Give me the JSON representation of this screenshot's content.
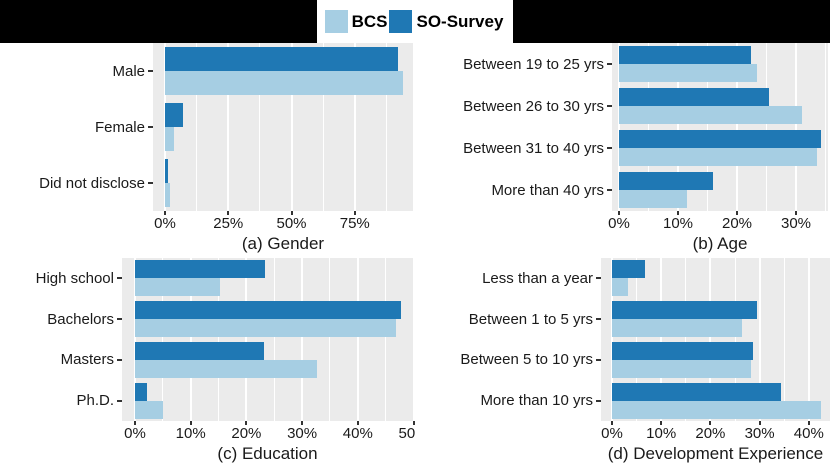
{
  "legend": {
    "items": [
      {
        "label": "BCS",
        "color": "#a6cee3"
      },
      {
        "label": "SO-Survey",
        "color": "#1f78b4"
      }
    ]
  },
  "colors": {
    "header_bg": "#000000",
    "panel_bg": "#ebebeb",
    "gridline": "#ffffff",
    "text": "#1a1a1a"
  },
  "chart_data": [
    {
      "type": "bar",
      "orientation": "horizontal",
      "title": "(a) Gender",
      "categories": [
        "Male",
        "Female",
        "Did not disclose"
      ],
      "series": [
        {
          "name": "BCS",
          "color": "#a6cee3",
          "values": [
            93.9,
            3.5,
            2.0
          ]
        },
        {
          "name": "SO-Survey",
          "color": "#1f78b4",
          "values": [
            92.1,
            7.0,
            1.3
          ]
        }
      ],
      "x_ticks": [
        {
          "label": "0%",
          "value": 0
        },
        {
          "label": "25%",
          "value": 25
        },
        {
          "label": "50%",
          "value": 50
        },
        {
          "label": "75%",
          "value": 75
        }
      ],
      "xlim": [
        0,
        97
      ],
      "minor_step": 12.5,
      "grid": true,
      "legend_position": "top"
    },
    {
      "type": "bar",
      "orientation": "horizontal",
      "title": "(b) Age",
      "categories": [
        "Between 19 to 25 yrs",
        "Between 26 to 30 yrs",
        "Between 31 to 40 yrs",
        "More than 40 yrs"
      ],
      "series": [
        {
          "name": "BCS",
          "color": "#a6cee3",
          "values": [
            23.4,
            31.0,
            33.5,
            11.6
          ]
        },
        {
          "name": "SO-Survey",
          "color": "#1f78b4",
          "values": [
            22.3,
            25.4,
            34.2,
            16.0
          ]
        }
      ],
      "x_ticks": [
        {
          "label": "0%",
          "value": 0
        },
        {
          "label": "10%",
          "value": 10
        },
        {
          "label": "20%",
          "value": 20
        },
        {
          "label": "30%",
          "value": 30
        }
      ],
      "xlim": [
        0,
        35.5
      ],
      "minor_step": 5,
      "grid": true,
      "legend_position": "top"
    },
    {
      "type": "bar",
      "orientation": "horizontal",
      "title": "(c) Education",
      "categories": [
        "High school",
        "Bachelors",
        "Masters",
        "Ph.D."
      ],
      "series": [
        {
          "name": "BCS",
          "color": "#a6cee3",
          "values": [
            15.3,
            46.9,
            32.7,
            5.1
          ]
        },
        {
          "name": "SO-Survey",
          "color": "#1f78b4",
          "values": [
            23.4,
            47.8,
            23.2,
            2.2
          ]
        }
      ],
      "x_ticks": [
        {
          "label": "0%",
          "value": 0
        },
        {
          "label": "10%",
          "value": 10
        },
        {
          "label": "20%",
          "value": 20
        },
        {
          "label": "30%",
          "value": 30
        },
        {
          "label": "40%",
          "value": 40
        },
        {
          "label": "50%",
          "value": 50
        }
      ],
      "xlim": [
        0,
        50.1
      ],
      "minor_step": 5,
      "grid": true,
      "legend_position": "top"
    },
    {
      "type": "bar",
      "orientation": "horizontal",
      "title": "(d) Development Experience",
      "categories": [
        "Less than a year",
        "Between 1 to 5 yrs",
        "Between 5 to 10 yrs",
        "More than 10 yrs"
      ],
      "series": [
        {
          "name": "BCS",
          "color": "#a6cee3",
          "values": [
            3.3,
            26.4,
            28.3,
            42.5
          ]
        },
        {
          "name": "SO-Survey",
          "color": "#1f78b4",
          "values": [
            6.8,
            29.5,
            28.6,
            34.3
          ]
        }
      ],
      "x_ticks": [
        {
          "label": "0%",
          "value": 0
        },
        {
          "label": "10%",
          "value": 10
        },
        {
          "label": "20%",
          "value": 20
        },
        {
          "label": "30%",
          "value": 30
        },
        {
          "label": "40%",
          "value": 40
        }
      ],
      "xlim": [
        0,
        44.5
      ],
      "minor_step": 5,
      "grid": true,
      "legend_position": "top"
    }
  ]
}
